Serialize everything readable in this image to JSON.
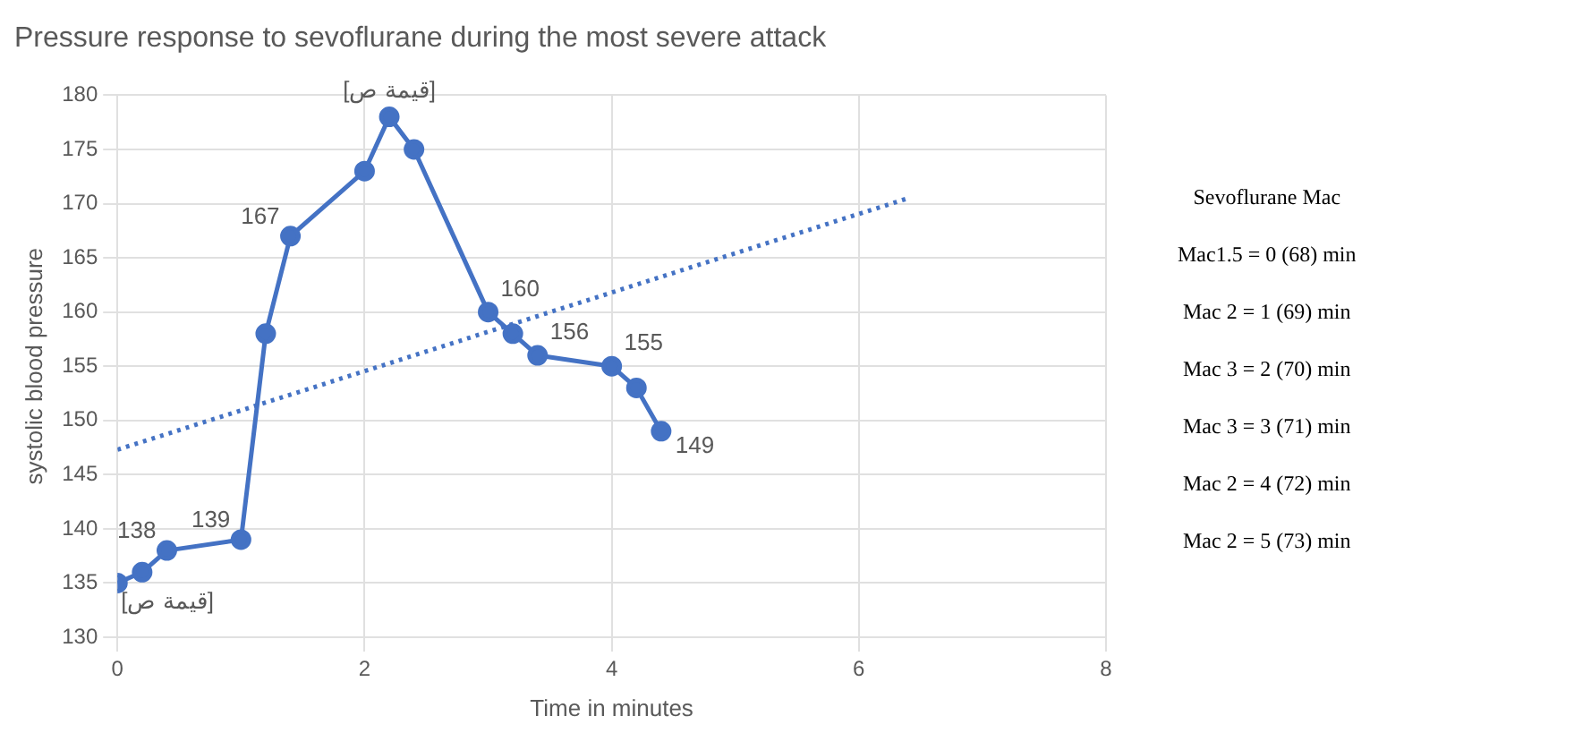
{
  "chart_data": {
    "type": "line",
    "title": "Pressure response to sevoflurane during the most severe attack",
    "xlabel": "Time in minutes",
    "ylabel": "systolic blood pressure",
    "xlim": [
      0,
      8
    ],
    "xticks": [
      0,
      2,
      4,
      6,
      8
    ],
    "ylim": [
      130,
      180
    ],
    "yticks": [
      130,
      135,
      140,
      145,
      150,
      155,
      160,
      165,
      170,
      175,
      180
    ],
    "grid": true,
    "marker": "circle",
    "line_style": "solid",
    "series": [
      {
        "color": "#4472c4",
        "x": [
          0,
          0.2,
          0.4,
          1.0,
          1.2,
          1.4,
          2.0,
          2.2,
          2.4,
          3.0,
          3.2,
          3.4,
          4.0,
          4.2,
          4.4
        ],
        "values": [
          135,
          136,
          138,
          139,
          158,
          167,
          173,
          178,
          175,
          160,
          158,
          156,
          155,
          153,
          149
        ],
        "value_labels": [
          "[قيمة ص]",
          null,
          "138",
          "139",
          null,
          "167",
          null,
          "[قيمة ص]",
          null,
          "160",
          null,
          "156",
          "155",
          null,
          "149"
        ]
      },
      {
        "type": "line",
        "color": "#4472c4",
        "line_style": "dotted",
        "marker": "none",
        "x": [
          0,
          6.4
        ],
        "values": [
          147.3,
          170.5
        ]
      }
    ],
    "annotations": [
      "Sevoflurane Mac",
      "Mac1.5 = 0 (68) min",
      "Mac 2 = 1 (69) min",
      "Mac 3 = 2 (70) min",
      "Mac 3 = 3 (71) min",
      "Mac 2 = 4 (72) min",
      "Mac 2 = 5 (73) min"
    ]
  }
}
